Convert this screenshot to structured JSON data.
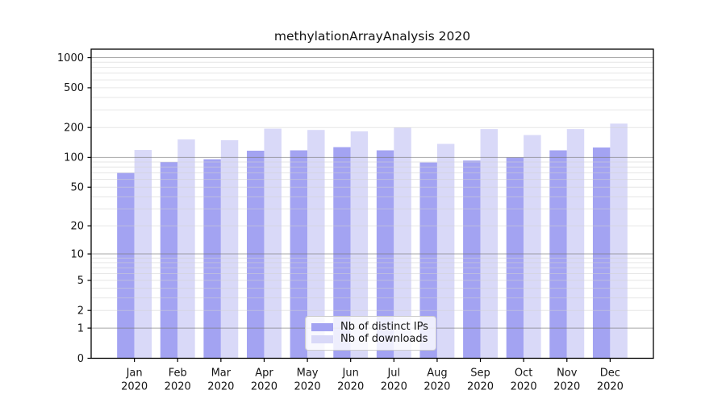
{
  "title": "methylationArrayAnalysis 2020",
  "chart_data": {
    "type": "bar",
    "title": "methylationArrayAnalysis 2020",
    "months": [
      "Jan",
      "Feb",
      "Mar",
      "Apr",
      "May",
      "Jun",
      "Jul",
      "Aug",
      "Sep",
      "Oct",
      "Nov",
      "Dec"
    ],
    "year_label": "2020",
    "series": [
      {
        "name": "Nb of distinct IPs",
        "color": "#a3a3f2",
        "values": [
          70,
          90,
          96,
          117,
          118,
          127,
          118,
          89,
          93,
          100,
          118,
          126
        ]
      },
      {
        "name": "Nb of downloads",
        "color": "#d9d9f8",
        "values": [
          119,
          152,
          149,
          195,
          189,
          183,
          200,
          137,
          193,
          168,
          193,
          219
        ]
      }
    ],
    "y_scale": "log1p",
    "y_ticks": [
      0,
      1,
      2,
      5,
      10,
      20,
      50,
      100,
      200,
      500,
      1000
    ],
    "ylim": [
      0,
      1216
    ],
    "xlabel": "",
    "ylabel": "",
    "grid": true,
    "legend_position": "inside-bottom-center",
    "style": {
      "axis_color": "#000000",
      "text_color": "#141414",
      "grid_major_color": "rgba(120,120,120,0.65)",
      "grid_minor_color": "rgba(210,210,210,0.55)",
      "background": "#ffffff"
    }
  }
}
